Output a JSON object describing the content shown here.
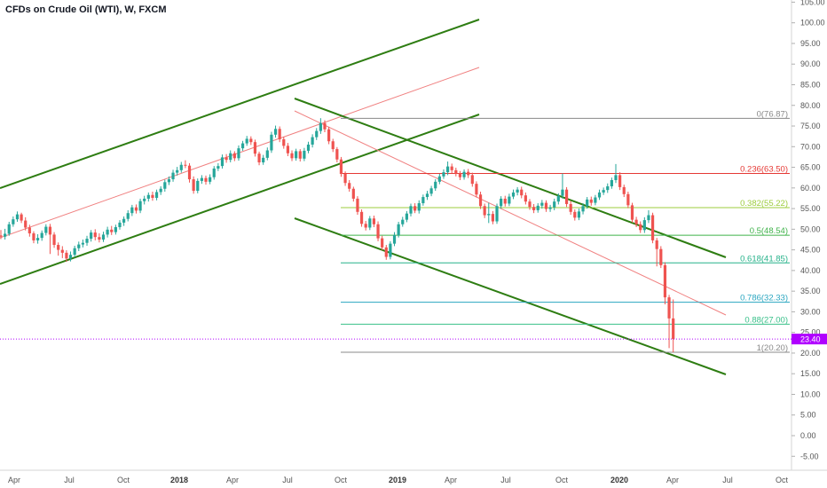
{
  "chart_data": {
    "type": "candlestick",
    "title": "CFDs on Crude Oil (WTI), W, FXCM",
    "xlabel": "",
    "ylabel": "",
    "ylim": [
      -8,
      105
    ],
    "grid": false,
    "y_ticks": [
      "105.00",
      "100.00",
      "95.00",
      "90.00",
      "85.00",
      "80.00",
      "75.00",
      "70.00",
      "65.00",
      "60.00",
      "55.00",
      "50.00",
      "45.00",
      "40.00",
      "35.00",
      "30.00",
      "25.00",
      "20.00",
      "15.00",
      "10.00",
      "5.00",
      "0.00",
      "-5.00"
    ],
    "x_ticks": [
      "Apr",
      "Jul",
      "Oct",
      "2018",
      "Apr",
      "Jul",
      "Oct",
      "2019",
      "Apr",
      "Jul",
      "Oct",
      "2020",
      "Apr",
      "Jul",
      "Oct"
    ],
    "last_price": "23.40",
    "candles": [
      [
        48.5,
        48.2,
        49.8,
        47.6
      ],
      [
        48.2,
        48.9,
        50.1,
        47.5
      ],
      [
        48.9,
        51.2,
        51.8,
        48.4
      ],
      [
        51.2,
        52.4,
        53.1,
        50.6
      ],
      [
        52.4,
        53.6,
        54.3,
        51.8
      ],
      [
        53.6,
        52.1,
        54.0,
        51.5
      ],
      [
        52.1,
        50.4,
        52.9,
        49.7
      ],
      [
        50.4,
        49.0,
        51.1,
        48.2
      ],
      [
        49.0,
        47.3,
        49.5,
        46.6
      ],
      [
        47.3,
        47.9,
        48.8,
        46.5
      ],
      [
        47.9,
        49.1,
        49.7,
        47.2
      ],
      [
        49.1,
        50.6,
        51.2,
        48.5
      ],
      [
        50.6,
        48.7,
        51.3,
        44.0
      ],
      [
        48.7,
        46.2,
        49.3,
        45.5
      ],
      [
        46.2,
        45.0,
        46.8,
        43.6
      ],
      [
        45.0,
        44.3,
        45.9,
        43.0
      ],
      [
        44.3,
        42.9,
        44.9,
        42.1
      ],
      [
        42.9,
        43.8,
        44.6,
        42.2
      ],
      [
        43.8,
        45.4,
        46.0,
        43.2
      ],
      [
        45.4,
        46.3,
        47.0,
        44.7
      ],
      [
        46.3,
        46.7,
        47.5,
        45.6
      ],
      [
        46.7,
        47.7,
        48.4,
        46.0
      ],
      [
        47.7,
        49.2,
        49.8,
        47.0
      ],
      [
        49.2,
        48.1,
        50.0,
        47.3
      ],
      [
        48.1,
        47.5,
        49.0,
        46.8
      ],
      [
        47.5,
        48.7,
        49.4,
        46.9
      ],
      [
        48.7,
        49.9,
        50.6,
        48.0
      ],
      [
        49.9,
        49.3,
        50.8,
        48.6
      ],
      [
        49.3,
        50.5,
        51.1,
        48.7
      ],
      [
        50.5,
        51.6,
        52.2,
        49.9
      ],
      [
        51.6,
        52.5,
        53.1,
        50.8
      ],
      [
        52.5,
        53.9,
        54.6,
        51.9
      ],
      [
        53.9,
        55.3,
        55.9,
        53.2
      ],
      [
        55.3,
        54.5,
        56.0,
        53.8
      ],
      [
        54.5,
        56.8,
        57.4,
        53.9
      ],
      [
        56.8,
        57.4,
        58.1,
        56.0
      ],
      [
        57.4,
        58.3,
        58.9,
        56.7
      ],
      [
        58.3,
        57.6,
        59.1,
        56.9
      ],
      [
        57.6,
        59.0,
        59.6,
        57.0
      ],
      [
        59.0,
        59.8,
        60.4,
        58.3
      ],
      [
        59.8,
        61.4,
        62.0,
        59.1
      ],
      [
        61.4,
        62.1,
        62.8,
        60.7
      ],
      [
        62.1,
        63.7,
        64.4,
        61.5
      ],
      [
        63.7,
        64.3,
        65.1,
        63.0
      ],
      [
        64.3,
        65.6,
        66.3,
        63.7
      ],
      [
        65.6,
        65.4,
        66.7,
        64.8
      ],
      [
        65.4,
        62.1,
        66.0,
        61.3
      ],
      [
        62.1,
        59.3,
        62.8,
        58.6
      ],
      [
        59.3,
        61.7,
        62.3,
        58.7
      ],
      [
        61.7,
        62.4,
        63.1,
        61.0
      ],
      [
        62.4,
        61.5,
        63.0,
        60.8
      ],
      [
        61.5,
        62.6,
        63.3,
        60.9
      ],
      [
        62.6,
        64.7,
        65.3,
        62.0
      ],
      [
        64.7,
        65.3,
        66.0,
        64.1
      ],
      [
        65.3,
        67.4,
        68.1,
        64.7
      ],
      [
        67.4,
        66.8,
        68.2,
        66.1
      ],
      [
        66.8,
        68.4,
        69.1,
        66.2
      ],
      [
        68.4,
        67.2,
        68.9,
        66.5
      ],
      [
        67.2,
        69.6,
        70.3,
        66.6
      ],
      [
        69.6,
        70.8,
        71.4,
        69.0
      ],
      [
        70.8,
        71.9,
        72.6,
        70.2
      ],
      [
        71.9,
        71.1,
        72.5,
        70.4
      ],
      [
        71.1,
        68.3,
        71.7,
        67.6
      ],
      [
        68.3,
        66.2,
        68.8,
        65.5
      ],
      [
        66.2,
        67.3,
        68.0,
        65.6
      ],
      [
        67.3,
        69.1,
        69.8,
        66.7
      ],
      [
        69.1,
        72.9,
        73.6,
        68.5
      ],
      [
        72.9,
        74.3,
        75.1,
        72.2
      ],
      [
        74.3,
        71.8,
        74.9,
        71.1
      ],
      [
        71.8,
        70.2,
        72.4,
        69.5
      ],
      [
        70.2,
        68.4,
        70.9,
        67.7
      ],
      [
        68.4,
        67.2,
        69.1,
        66.5
      ],
      [
        67.2,
        68.9,
        69.5,
        66.6
      ],
      [
        68.9,
        67.1,
        69.4,
        66.4
      ],
      [
        67.1,
        69.0,
        69.7,
        66.5
      ],
      [
        69.0,
        70.5,
        71.2,
        68.4
      ],
      [
        70.5,
        72.3,
        73.0,
        69.8
      ],
      [
        72.3,
        73.8,
        74.5,
        71.6
      ],
      [
        73.8,
        75.7,
        76.9,
        73.1
      ],
      [
        75.7,
        74.2,
        76.4,
        73.5
      ],
      [
        74.2,
        71.3,
        74.8,
        70.6
      ],
      [
        71.3,
        69.4,
        71.9,
        68.7
      ],
      [
        69.4,
        66.9,
        69.9,
        66.2
      ],
      [
        66.9,
        63.4,
        67.5,
        62.7
      ],
      [
        63.4,
        61.2,
        64.0,
        60.5
      ],
      [
        61.2,
        59.8,
        61.9,
        59.1
      ],
      [
        59.8,
        57.4,
        60.3,
        56.7
      ],
      [
        57.4,
        54.2,
        58.0,
        53.5
      ],
      [
        54.2,
        51.3,
        54.8,
        50.6
      ],
      [
        51.3,
        50.4,
        52.0,
        49.7
      ],
      [
        50.4,
        52.6,
        53.2,
        49.8
      ],
      [
        52.6,
        51.2,
        53.3,
        50.5
      ],
      [
        51.2,
        47.8,
        51.9,
        47.1
      ],
      [
        47.8,
        45.6,
        48.4,
        44.9
      ],
      [
        45.6,
        43.3,
        46.2,
        42.6
      ],
      [
        43.3,
        46.5,
        47.1,
        42.7
      ],
      [
        46.5,
        48.6,
        49.3,
        45.9
      ],
      [
        48.6,
        51.2,
        51.8,
        48.0
      ],
      [
        51.2,
        52.3,
        53.0,
        50.6
      ],
      [
        52.3,
        53.8,
        54.4,
        51.7
      ],
      [
        53.8,
        55.6,
        56.2,
        53.1
      ],
      [
        55.6,
        54.5,
        56.3,
        53.9
      ],
      [
        54.5,
        56.3,
        57.0,
        53.8
      ],
      [
        56.3,
        57.8,
        58.4,
        55.7
      ],
      [
        57.8,
        58.6,
        59.3,
        57.1
      ],
      [
        58.6,
        59.9,
        60.5,
        58.0
      ],
      [
        59.9,
        61.5,
        62.1,
        59.3
      ],
      [
        61.5,
        62.8,
        63.4,
        60.9
      ],
      [
        62.8,
        63.8,
        64.5,
        62.2
      ],
      [
        63.8,
        65.2,
        66.4,
        63.1
      ],
      [
        65.2,
        64.3,
        65.9,
        63.6
      ],
      [
        64.3,
        63.5,
        64.9,
        62.8
      ],
      [
        63.5,
        62.6,
        64.1,
        61.9
      ],
      [
        62.6,
        63.9,
        64.5,
        62.0
      ],
      [
        63.9,
        63.1,
        64.6,
        62.4
      ],
      [
        63.1,
        61.0,
        63.7,
        60.3
      ],
      [
        61.0,
        58.4,
        61.6,
        57.7
      ],
      [
        58.4,
        55.6,
        59.1,
        54.9
      ],
      [
        55.6,
        53.4,
        56.2,
        52.7
      ],
      [
        53.4,
        53.7,
        56.4,
        51.5
      ],
      [
        53.7,
        51.9,
        54.4,
        51.2
      ],
      [
        51.9,
        55.6,
        56.2,
        51.3
      ],
      [
        55.6,
        57.4,
        58.0,
        55.0
      ],
      [
        57.4,
        56.2,
        58.1,
        55.5
      ],
      [
        56.2,
        57.9,
        58.6,
        55.6
      ],
      [
        57.9,
        58.9,
        59.6,
        57.3
      ],
      [
        58.9,
        59.6,
        60.2,
        58.2
      ],
      [
        59.6,
        58.2,
        60.3,
        57.5
      ],
      [
        58.2,
        56.7,
        58.9,
        56.0
      ],
      [
        56.7,
        55.4,
        57.3,
        54.7
      ],
      [
        55.4,
        54.6,
        56.1,
        53.9
      ],
      [
        54.6,
        55.7,
        56.3,
        54.0
      ],
      [
        55.7,
        56.4,
        57.1,
        55.0
      ],
      [
        56.4,
        54.9,
        57.0,
        54.2
      ],
      [
        54.9,
        55.3,
        55.9,
        54.2
      ],
      [
        55.3,
        56.7,
        57.4,
        54.6
      ],
      [
        56.7,
        58.1,
        58.7,
        56.0
      ],
      [
        58.1,
        59.6,
        63.5,
        57.4
      ],
      [
        59.6,
        56.1,
        60.2,
        55.4
      ],
      [
        56.1,
        54.2,
        56.8,
        53.5
      ],
      [
        54.2,
        52.8,
        54.8,
        52.1
      ],
      [
        52.8,
        54.3,
        55.0,
        52.2
      ],
      [
        54.3,
        55.6,
        56.3,
        53.6
      ],
      [
        55.6,
        57.2,
        57.8,
        55.0
      ],
      [
        57.2,
        56.4,
        57.9,
        55.7
      ],
      [
        56.4,
        57.7,
        58.3,
        55.8
      ],
      [
        57.7,
        58.9,
        59.6,
        57.1
      ],
      [
        58.9,
        59.5,
        60.1,
        58.3
      ],
      [
        59.5,
        60.4,
        61.1,
        58.8
      ],
      [
        60.4,
        61.9,
        62.5,
        59.8
      ],
      [
        61.9,
        63.1,
        65.8,
        61.2
      ],
      [
        63.1,
        60.2,
        63.8,
        59.5
      ],
      [
        60.2,
        58.5,
        60.8,
        57.8
      ],
      [
        58.5,
        55.8,
        59.1,
        55.1
      ],
      [
        55.8,
        52.3,
        56.4,
        51.6
      ],
      [
        52.3,
        51.2,
        53.0,
        50.5
      ],
      [
        51.2,
        49.8,
        51.9,
        49.1
      ],
      [
        49.8,
        52.2,
        52.9,
        49.1
      ],
      [
        52.2,
        53.4,
        54.6,
        51.5
      ],
      [
        53.4,
        47.3,
        54.0,
        46.6
      ],
      [
        47.3,
        45.2,
        47.9,
        41.0
      ],
      [
        45.2,
        41.3,
        45.9,
        40.6
      ],
      [
        41.3,
        33.5,
        42.0,
        31.8
      ],
      [
        33.5,
        28.4,
        34.1,
        21.2
      ],
      [
        28.4,
        23.4,
        33.0,
        20.2
      ]
    ],
    "fib_levels": [
      {
        "level": "0",
        "value": 76.87,
        "label": "0(76.87)",
        "color": "#888888"
      },
      {
        "level": "0.236",
        "value": 63.5,
        "label": "0.236(63.50)",
        "color": "#e53935"
      },
      {
        "level": "0.382",
        "value": 55.22,
        "label": "0.382(55.22)",
        "color": "#9ccc3c"
      },
      {
        "level": "0.5",
        "value": 48.54,
        "label": "0.5(48.54)",
        "color": "#3fb24a"
      },
      {
        "level": "0.618",
        "value": 41.85,
        "label": "0.618(41.85)",
        "color": "#26b28a"
      },
      {
        "level": "0.786",
        "value": 32.33,
        "label": "0.786(32.33)",
        "color": "#2aa6c0"
      },
      {
        "level": "0.88",
        "value": 27.0,
        "label": "0.88(27.00)",
        "color": "#39c08a"
      },
      {
        "level": "1",
        "value": 20.2,
        "label": "1(20.20)",
        "color": "#888888"
      }
    ],
    "colors": {
      "up": "#26a69a",
      "down": "#ef5350",
      "channel": "#2e7d12",
      "midline": "#f08080",
      "price_line": "#b000ff",
      "axis_text": "#555555"
    }
  }
}
